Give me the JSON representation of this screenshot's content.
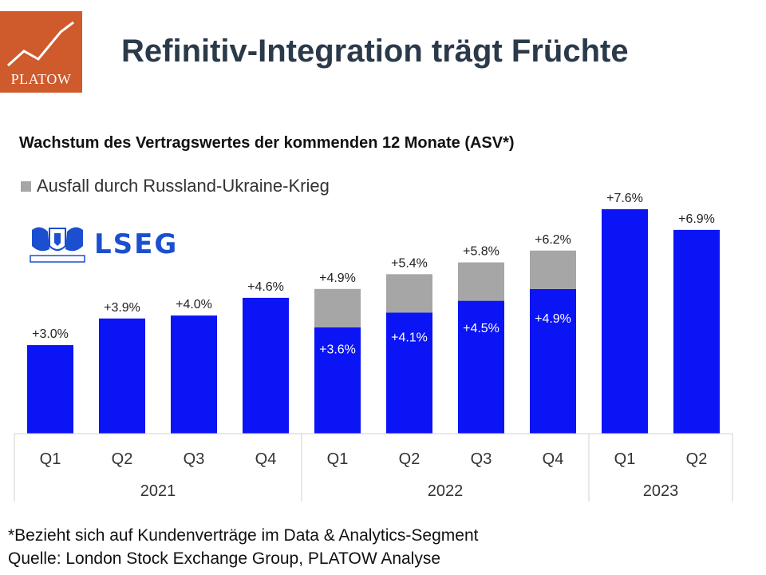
{
  "header": {
    "title": "Refinitiv-Integration trägt Früchte",
    "brand_logo_text": "PLATOW"
  },
  "partner_logo_text": "LSEG",
  "footnotes": {
    "note": "*Bezieht sich auf Kundenverträge im Data & Analytics-Segment",
    "source": "Quelle: London Stock Exchange Group, PLATOW Analyse"
  },
  "colors": {
    "bar_blue": "#0a14f5",
    "bar_gray": "#a6a6a6",
    "logo_orange": "#cf5a2c",
    "title": "#2b3a4a"
  },
  "chart_data": {
    "type": "bar",
    "stacked": true,
    "title": "Wachstum des Vertragswertes der kommenden 12 Monate (ASV*)",
    "categories": [
      "Q1",
      "Q2",
      "Q3",
      "Q4",
      "Q1",
      "Q2",
      "Q3",
      "Q4",
      "Q1",
      "Q2"
    ],
    "groups": [
      {
        "label": "2021",
        "count": 4
      },
      {
        "label": "2022",
        "count": 4
      },
      {
        "label": "2023",
        "count": 2
      }
    ],
    "series": [
      {
        "name": "",
        "color": "#0a14f5",
        "values": [
          3.0,
          3.9,
          4.0,
          4.6,
          3.6,
          4.1,
          4.5,
          4.9,
          7.6,
          6.9
        ]
      },
      {
        "name": "Ausfall durch Russland-Ukraine-Krieg",
        "color": "#a6a6a6",
        "values": [
          0,
          0,
          0,
          0,
          1.3,
          1.3,
          1.3,
          1.3,
          0,
          0
        ]
      }
    ],
    "top_labels": [
      "+3.0%",
      "+3.9%",
      "+4.0%",
      "+4.6%",
      "+4.9%",
      "+5.4%",
      "+5.8%",
      "+6.2%",
      "+7.6%",
      "+6.9%"
    ],
    "inner_labels": [
      "",
      "",
      "",
      "",
      "+3.6%",
      "+4.1%",
      "+4.5%",
      "+4.9%",
      "",
      ""
    ],
    "ylim": [
      0,
      7.6
    ],
    "legend": "top-left",
    "grid": false
  }
}
